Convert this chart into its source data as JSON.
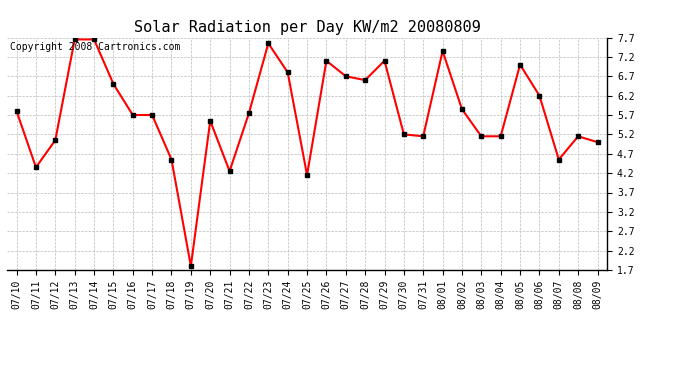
{
  "title": "Solar Radiation per Day KW/m2 20080809",
  "copyright": "Copyright 2008 Cartronics.com",
  "dates": [
    "07/10",
    "07/11",
    "07/12",
    "07/13",
    "07/14",
    "07/15",
    "07/16",
    "07/17",
    "07/18",
    "07/19",
    "07/20",
    "07/21",
    "07/22",
    "07/23",
    "07/24",
    "07/25",
    "07/26",
    "07/27",
    "07/28",
    "07/29",
    "07/30",
    "07/31",
    "08/01",
    "08/02",
    "08/03",
    "08/04",
    "08/05",
    "08/06",
    "08/07",
    "08/08",
    "08/09"
  ],
  "values": [
    5.8,
    4.35,
    5.05,
    7.65,
    7.65,
    6.5,
    5.7,
    5.7,
    4.55,
    1.8,
    5.55,
    4.25,
    5.75,
    7.55,
    6.8,
    4.15,
    7.1,
    6.7,
    6.6,
    7.1,
    5.2,
    5.15,
    7.35,
    5.85,
    5.15,
    5.15,
    7.0,
    6.2,
    4.55,
    5.15,
    5.0
  ],
  "line_color": "red",
  "marker": "s",
  "marker_size": 3,
  "marker_facecolor": "black",
  "ylim": [
    1.7,
    7.7
  ],
  "yticks": [
    1.7,
    2.2,
    2.7,
    3.2,
    3.7,
    4.2,
    4.7,
    5.2,
    5.7,
    6.2,
    6.7,
    7.2,
    7.7
  ],
  "bg_color": "white",
  "grid_color": "#bbbbbb",
  "title_fontsize": 11,
  "copyright_fontsize": 7,
  "tick_fontsize": 7
}
